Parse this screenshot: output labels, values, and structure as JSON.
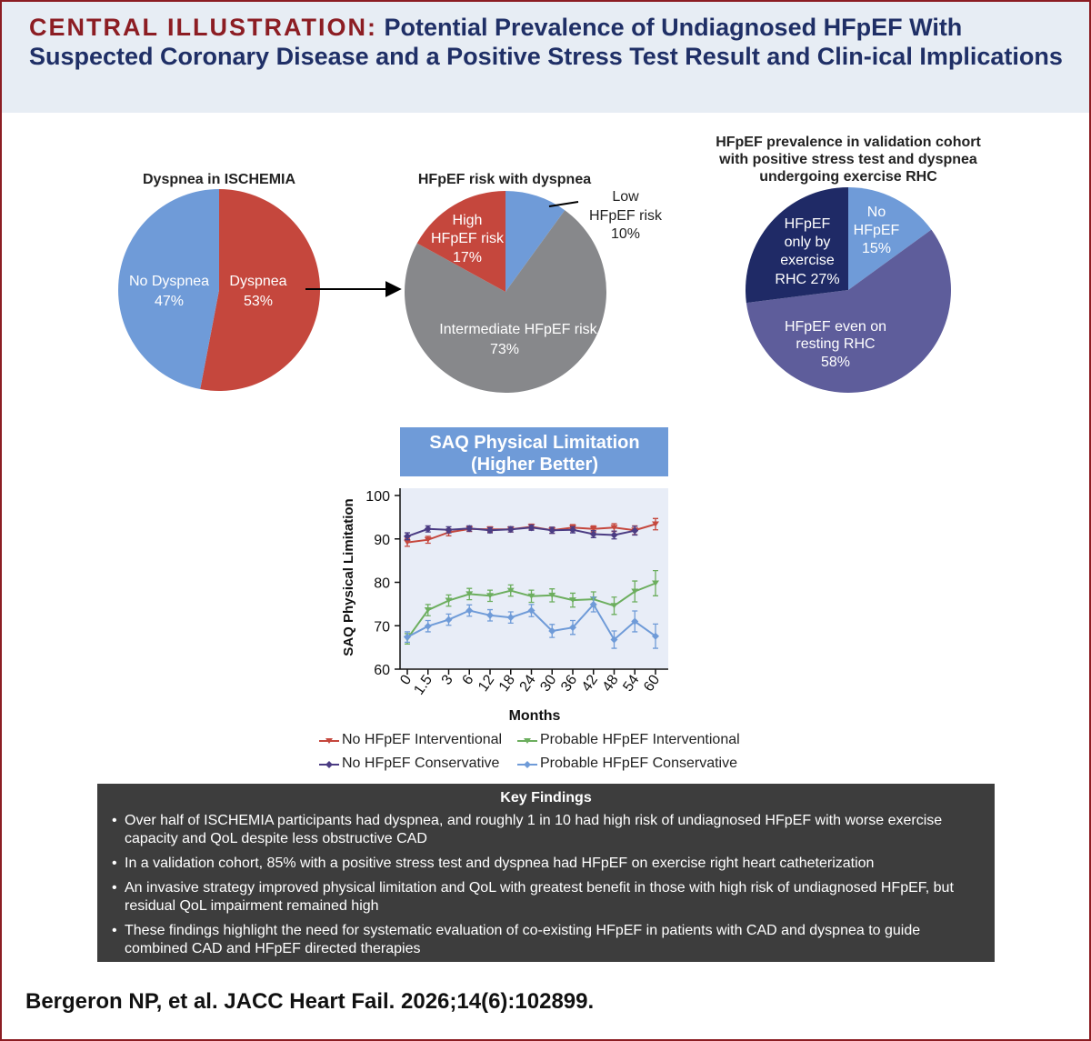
{
  "header": {
    "title_prefix": "CENTRAL ILLUSTRATION:",
    "title_rest": " Potential Prevalence of Undiagnosed HFpEF With Suspected Coronary Disease and a Positive Stress Test Result and Clin-ical Implications"
  },
  "colors": {
    "red": "#c5473d",
    "blue": "#6f9bd8",
    "gray": "#87888b",
    "navy": "#1f2a66",
    "purple": "#5e5d9b",
    "green": "#6cae5e",
    "darkpurple": "#4b3c83",
    "dark_panel": "#3d3d3d",
    "title_red": "#8c1d23",
    "title_blue": "#1f2f66",
    "plot_bg": "#e8edf7",
    "header_bg": "#e7edf4"
  },
  "chart_data": [
    {
      "type": "pie",
      "title": "Dyspnea in ISCHEMIA",
      "slices": [
        {
          "name": "Dyspnea",
          "value": 53,
          "label": "53%",
          "color": "#c5473d"
        },
        {
          "name": "No Dyspnea",
          "value": 47,
          "label": "47%",
          "color": "#6f9bd8"
        }
      ]
    },
    {
      "type": "pie",
      "title": "HFpEF risk with dyspnea",
      "slices": [
        {
          "name": "Low HFpEF risk",
          "value": 10,
          "label": "10%",
          "color": "#6f9bd8"
        },
        {
          "name": "Intermediate HFpEF risk",
          "value": 73,
          "label": "73%",
          "color": "#87888b"
        },
        {
          "name": "High HFpEF risk",
          "value": 17,
          "label": "17%",
          "color": "#c5473d"
        }
      ]
    },
    {
      "type": "pie",
      "title": "HFpEF prevalence in validation cohort with positive stress test and dyspnea undergoing exercise RHC",
      "title_lines": [
        "HFpEF prevalence in validation cohort",
        "with positive stress test and dyspnea",
        "undergoing exercise RHC"
      ],
      "slices": [
        {
          "name": "No HFpEF",
          "value": 15,
          "label": "15%",
          "color": "#6f9bd8"
        },
        {
          "name": "HFpEF even on resting RHC",
          "value": 58,
          "label": "58%",
          "color": "#5e5d9b"
        },
        {
          "name": "HFpEF only by exercise RHC",
          "value": 27,
          "label": "27%",
          "color": "#1f2a66"
        }
      ]
    },
    {
      "type": "line",
      "title": "SAQ Physical Limitation (Higher Better)",
      "title_lines": [
        "SAQ Physical Limitation",
        "(Higher Better)"
      ],
      "xlabel": "Months",
      "ylabel": "SAQ Physical Limitation",
      "x": [
        "0",
        "1.5",
        "3",
        "6",
        "12",
        "18",
        "24",
        "30",
        "36",
        "42",
        "48",
        "54",
        "60"
      ],
      "ylim": [
        60,
        100
      ],
      "yticks": [
        60,
        70,
        80,
        90,
        100
      ],
      "series": [
        {
          "name": "No HFpEF Interventional",
          "color": "#c5473d",
          "marker": "triangle-down",
          "values": [
            89.2,
            89.8,
            91.5,
            92.3,
            92.2,
            92.2,
            92.8,
            92.0,
            92.6,
            92.3,
            92.6,
            92.0,
            93.4
          ],
          "errors": [
            0.9,
            0.8,
            0.8,
            0.6,
            0.6,
            0.6,
            0.6,
            0.7,
            0.7,
            0.7,
            0.9,
            1.0,
            1.3
          ]
        },
        {
          "name": "No HFpEF Conservative",
          "color": "#4b3c83",
          "marker": "diamond",
          "values": [
            90.6,
            92.3,
            92.1,
            92.4,
            92.0,
            92.2,
            92.6,
            92.0,
            92.1,
            91.1,
            90.9,
            91.9,
            null
          ],
          "errors": [
            0.8,
            0.7,
            0.7,
            0.6,
            0.6,
            0.6,
            0.6,
            0.7,
            0.7,
            0.8,
            0.9,
            1.0,
            null
          ]
        },
        {
          "name": "Probable HFpEF Interventional",
          "color": "#6cae5e",
          "marker": "triangle-down",
          "values": [
            67.0,
            73.6,
            75.8,
            77.3,
            76.9,
            78.1,
            76.8,
            77.0,
            75.9,
            76.1,
            74.6,
            77.9,
            79.8
          ],
          "errors": [
            1.2,
            1.3,
            1.3,
            1.3,
            1.3,
            1.3,
            1.4,
            1.5,
            1.6,
            1.7,
            2.0,
            2.4,
            2.9
          ]
        },
        {
          "name": "Probable HFpEF Conservative",
          "color": "#6f9bd8",
          "marker": "diamond",
          "values": [
            67.4,
            69.9,
            71.4,
            73.5,
            72.4,
            71.9,
            73.5,
            68.8,
            69.6,
            74.9,
            66.8,
            71.0,
            67.6
          ],
          "errors": [
            1.2,
            1.3,
            1.3,
            1.3,
            1.3,
            1.3,
            1.4,
            1.5,
            1.6,
            1.7,
            2.0,
            2.4,
            2.8
          ]
        }
      ]
    }
  ],
  "findings": {
    "title": "Key Findings",
    "items": [
      "Over half of ISCHEMIA participants had dyspnea, and roughly 1 in 10 had high risk of undiagnosed HFpEF with worse exercise capacity and QoL despite less obstructive CAD",
      "In a validation cohort, 85% with a positive stress test and dyspnea had HFpEF on exercise right heart catheterization",
      "An invasive strategy improved physical limitation and QoL with greatest benefit in those with high risk of undiagnosed HFpEF, but residual QoL impairment remained high",
      "These findings highlight the need for systematic evaluation of co-existing HFpEF in patients with CAD and dyspnea to guide combined CAD and HFpEF directed therapies"
    ]
  },
  "citation": "Bergeron NP, et al. JACC Heart Fail. 2026;14(6):102899."
}
